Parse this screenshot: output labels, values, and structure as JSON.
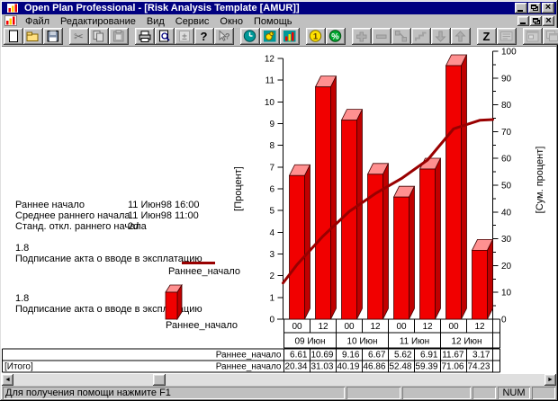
{
  "window": {
    "title": "Open Plan Professional - [Risk Analysis Template [AMUR]]"
  },
  "menu": {
    "items": [
      {
        "label": "Файл"
      },
      {
        "label": "Редактирование"
      },
      {
        "label": "Вид"
      },
      {
        "label": "Сервис"
      },
      {
        "label": "Окно"
      },
      {
        "label": "Помощь"
      }
    ]
  },
  "toolbar": {
    "groups": [
      [
        {
          "name": "new-button",
          "icon": "new",
          "enabled": true
        },
        {
          "name": "open-button",
          "icon": "open",
          "enabled": true
        },
        {
          "name": "save-button",
          "icon": "save",
          "enabled": true
        }
      ],
      [
        {
          "name": "cut-button",
          "icon": "cut",
          "enabled": false
        },
        {
          "name": "copy-button",
          "icon": "copy",
          "enabled": false
        },
        {
          "name": "paste-button",
          "icon": "paste",
          "enabled": false
        }
      ],
      [
        {
          "name": "print-button",
          "icon": "print",
          "enabled": true
        },
        {
          "name": "print-preview-button",
          "icon": "preview",
          "enabled": true
        },
        {
          "name": "table-view-button",
          "icon": "plusminus",
          "enabled": false
        },
        {
          "name": "help-button",
          "icon": "help",
          "enabled": true
        },
        {
          "name": "context-help-button",
          "icon": "ctxhelp",
          "enabled": false
        }
      ],
      [
        {
          "name": "time-analysis-button",
          "icon": "time",
          "enabled": true
        },
        {
          "name": "resource-analysis-button",
          "icon": "resource",
          "enabled": true
        },
        {
          "name": "risk-analysis-button",
          "icon": "risk",
          "enabled": true
        }
      ],
      [
        {
          "name": "cost-button",
          "icon": "cost",
          "enabled": true
        },
        {
          "name": "percent-complete-button",
          "icon": "percent",
          "enabled": true
        }
      ],
      [
        {
          "name": "add-activity-button",
          "icon": "plus",
          "enabled": false
        },
        {
          "name": "delete-activity-button",
          "icon": "minus",
          "enabled": false
        },
        {
          "name": "link-activities-button",
          "icon": "connect",
          "enabled": false
        },
        {
          "name": "steps-button",
          "icon": "steps",
          "enabled": false
        },
        {
          "name": "move-down-button",
          "icon": "move-down",
          "enabled": false
        },
        {
          "name": "move-up-button",
          "icon": "move-up",
          "enabled": false
        }
      ],
      [
        {
          "name": "sort-button",
          "icon": "sort",
          "enabled": true
        },
        {
          "name": "notes-button",
          "icon": "notes",
          "enabled": false
        }
      ],
      [
        {
          "name": "tile-windows-button",
          "icon": "tile",
          "enabled": false
        },
        {
          "name": "cascade-windows-button",
          "icon": "cascade",
          "enabled": false
        }
      ]
    ]
  },
  "info_block": {
    "rows": [
      {
        "label": "Раннее начало",
        "value": "11 Июн98 16:00"
      },
      {
        "label": "Среднее раннего начала",
        "value": "11 Июн98 11:00"
      },
      {
        "label": "Станд. откл.  раннего начала",
        "value": "2d"
      }
    ]
  },
  "legend": {
    "entries": [
      {
        "id": "1.8",
        "activity": "Подписание акта о вводе в эксплатацию",
        "series": "Раннее_начало",
        "swatch": "line",
        "color": "#990000"
      },
      {
        "id": "1.8",
        "activity": "Подписание акта о вводе в эксплатацию",
        "series": "Раннее_начало",
        "swatch": "bar",
        "color": "#f10000"
      }
    ]
  },
  "chart_data": {
    "type": "bar",
    "title": "",
    "x_hour_labels": [
      "00",
      "12",
      "00",
      "12",
      "00",
      "12",
      "00",
      "12"
    ],
    "date_groups": [
      "09 Июн",
      "10 Июн",
      "11 Июн",
      "12 Июн"
    ],
    "left_axis": {
      "label": "[Процент]",
      "min": 0,
      "max": 12,
      "tick_step": 1
    },
    "right_axis": {
      "label": "[Сум. процент]",
      "min": 0,
      "max": 100,
      "tick_step": 10
    },
    "grid": false,
    "series": [
      {
        "name": "Раннее_начало",
        "kind": "bar",
        "axis": "left",
        "color": "#f10000",
        "values": [
          6.61,
          10.69,
          9.16,
          6.67,
          5.62,
          6.91,
          11.67,
          3.17
        ]
      },
      {
        "name": "Раннее_начало [Итого]",
        "kind": "line",
        "axis": "right",
        "color": "#990000",
        "edge_start": 13.5,
        "edge_end": 74.5,
        "values": [
          20.34,
          31.03,
          40.19,
          46.86,
          52.48,
          59.39,
          71.06,
          74.23
        ]
      }
    ]
  },
  "table": {
    "rows": [
      {
        "group_label": "",
        "series_label": "Раннее_начало",
        "values": [
          "6.61",
          "10.69",
          "9.16",
          "6.67",
          "5.62",
          "6.91",
          "11.67",
          "3.17"
        ]
      },
      {
        "group_label": "[Итого]",
        "series_label": "Раннее_начало",
        "values": [
          "20.34",
          "31.03",
          "40.19",
          "46.86",
          "52.48",
          "59.39",
          "71.06",
          "74.23"
        ]
      }
    ]
  },
  "status_bar": {
    "message": "Для получения помощи нажмите F1",
    "num_indicator": "NUM"
  }
}
